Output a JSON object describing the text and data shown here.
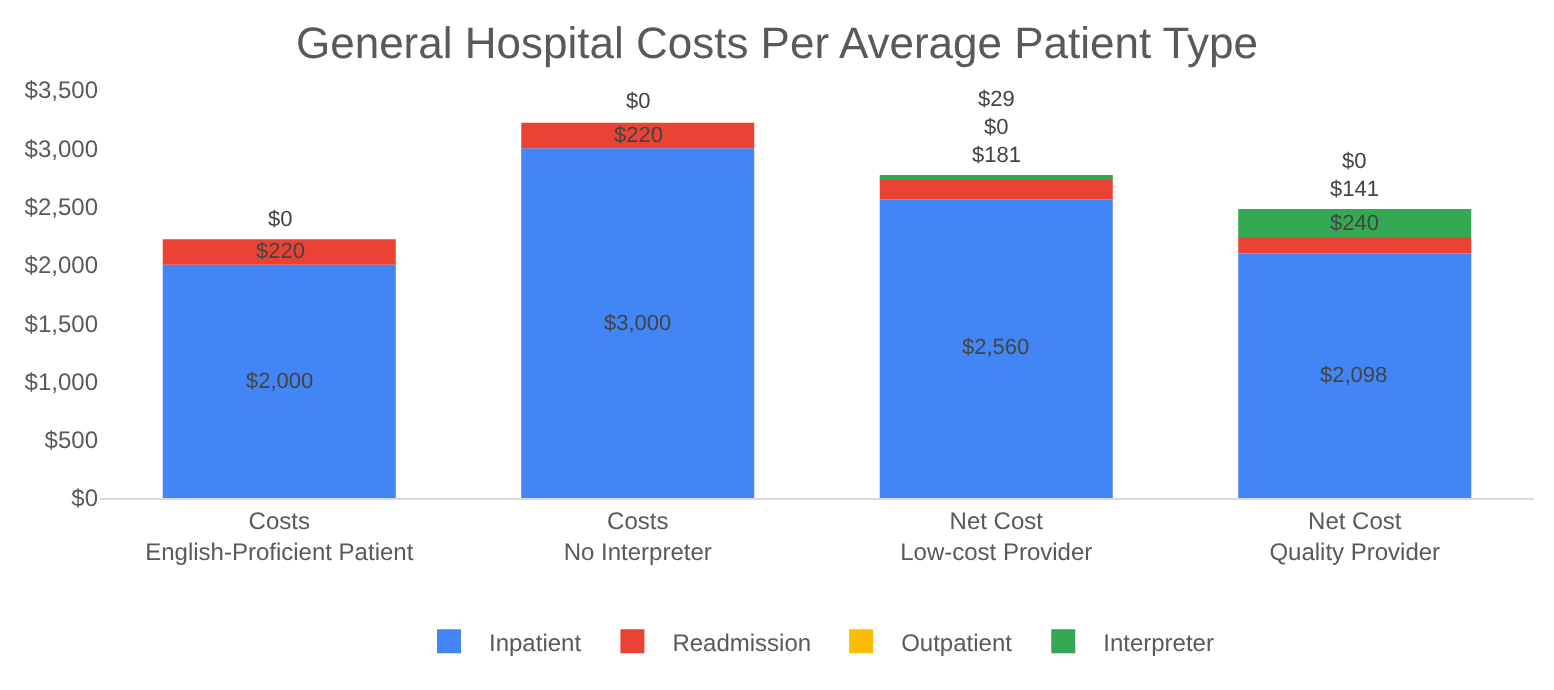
{
  "chart_data": {
    "type": "bar",
    "title": "General Hospital Costs Per Average Patient Type",
    "stacked": true,
    "categories": [
      "Costs\nEnglish-Proficient Patient",
      "Costs\nNo Interpreter",
      "Net Cost\nLow-cost Provider",
      "Net Cost\nQuality Provider"
    ],
    "series": [
      {
        "name": "Inpatient",
        "color": "#4285f4",
        "values": [
          2000,
          3000,
          2560,
          2098
        ],
        "value_labels": [
          "$2,000",
          "$3,000",
          "$2,560",
          "$2,098"
        ]
      },
      {
        "name": "Readmission",
        "color": "#ea4335",
        "values": [
          220,
          220,
          181,
          141
        ],
        "value_labels": [
          "$220",
          "$220",
          "$181",
          "$141"
        ]
      },
      {
        "name": "Outpatient",
        "color": "#fbbc04",
        "values": [
          0,
          0,
          0,
          0
        ],
        "value_labels": [
          null,
          null,
          "$0",
          "$0"
        ]
      },
      {
        "name": "Interpreter",
        "color": "#34a853",
        "values": [
          0,
          0,
          29,
          240
        ],
        "value_labels": [
          "$0",
          "$0",
          "$29",
          "$240"
        ]
      }
    ],
    "ylim": [
      0,
      3500
    ],
    "yticks": [
      {
        "value": 0,
        "label": "$0"
      },
      {
        "value": 500,
        "label": "$500"
      },
      {
        "value": 1000,
        "label": "$1,000"
      },
      {
        "value": 1500,
        "label": "$1,500"
      },
      {
        "value": 2000,
        "label": "$2,000"
      },
      {
        "value": 2500,
        "label": "$2,500"
      },
      {
        "value": 3000,
        "label": "$3,000"
      },
      {
        "value": 3500,
        "label": "$3,500"
      }
    ],
    "grid": false,
    "legend": "bottom"
  }
}
